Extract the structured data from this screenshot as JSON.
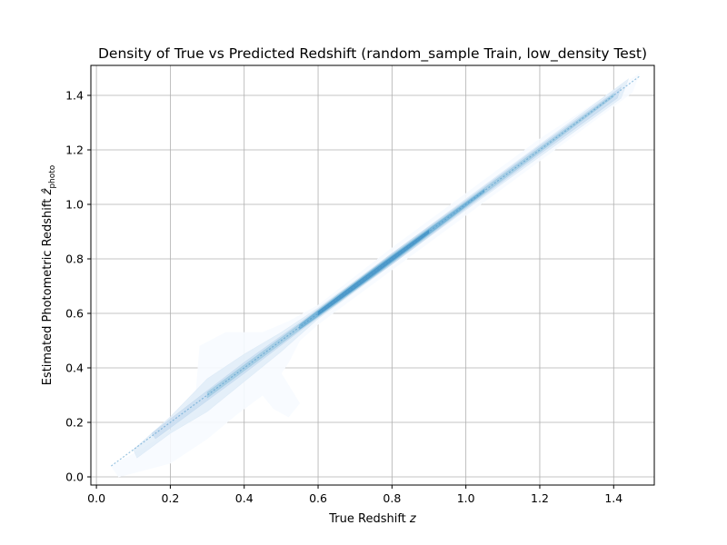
{
  "chart_data": {
    "type": "density",
    "title": "Density of True vs Predicted Redshift (random_sample Train, low_density Test)",
    "xlabel": {
      "main": "True Redshift ",
      "var": "z"
    },
    "ylabel": {
      "main": "Estimated Photometric Redshift ",
      "var": "ẑ",
      "sub": "photo"
    },
    "xlim": [
      -0.015,
      1.51
    ],
    "ylim": [
      -0.03,
      1.51
    ],
    "xticks": [
      0.0,
      0.2,
      0.4,
      0.6,
      0.8,
      1.0,
      1.2,
      1.4
    ],
    "xtick_labels": [
      "0.0",
      "0.2",
      "0.4",
      "0.6",
      "0.8",
      "1.0",
      "1.2",
      "1.4"
    ],
    "yticks": [
      0.0,
      0.2,
      0.4,
      0.6,
      0.8,
      1.0,
      1.2,
      1.4
    ],
    "ytick_labels": [
      "0.0",
      "0.2",
      "0.4",
      "0.6",
      "0.8",
      "1.0",
      "1.2",
      "1.4"
    ],
    "grid": true,
    "colormap": [
      "#f7fbff",
      "#deebf7",
      "#c6dbef",
      "#9ecae1",
      "#6baed6",
      "#4292c6",
      "#2171b5"
    ],
    "density_regions": [
      {
        "level": 0,
        "polygon": [
          [
            0.04,
            0.04
          ],
          [
            0.12,
            0.1
          ],
          [
            0.2,
            0.17
          ],
          [
            0.27,
            0.32
          ],
          [
            0.28,
            0.48
          ],
          [
            0.35,
            0.53
          ],
          [
            0.45,
            0.53
          ],
          [
            0.52,
            0.57
          ],
          [
            0.6,
            0.63
          ],
          [
            0.8,
            0.84
          ],
          [
            1.0,
            1.04
          ],
          [
            1.2,
            1.24
          ],
          [
            1.47,
            1.48
          ],
          [
            1.45,
            1.41
          ],
          [
            1.2,
            1.16
          ],
          [
            1.0,
            0.96
          ],
          [
            0.8,
            0.76
          ],
          [
            0.6,
            0.56
          ],
          [
            0.55,
            0.5
          ],
          [
            0.52,
            0.42
          ],
          [
            0.5,
            0.38
          ],
          [
            0.55,
            0.27
          ],
          [
            0.52,
            0.22
          ],
          [
            0.48,
            0.25
          ],
          [
            0.45,
            0.3
          ],
          [
            0.38,
            0.23
          ],
          [
            0.3,
            0.14
          ],
          [
            0.2,
            0.05
          ],
          [
            0.06,
            0.0
          ]
        ]
      },
      {
        "level": 1,
        "polygon": [
          [
            0.1,
            0.1
          ],
          [
            0.2,
            0.22
          ],
          [
            0.3,
            0.36
          ],
          [
            0.4,
            0.45
          ],
          [
            0.5,
            0.53
          ],
          [
            0.6,
            0.62
          ],
          [
            0.8,
            0.82
          ],
          [
            1.0,
            1.02
          ],
          [
            1.44,
            1.46
          ],
          [
            1.42,
            1.39
          ],
          [
            1.0,
            0.98
          ],
          [
            0.8,
            0.78
          ],
          [
            0.6,
            0.58
          ],
          [
            0.5,
            0.46
          ],
          [
            0.4,
            0.35
          ],
          [
            0.3,
            0.24
          ],
          [
            0.2,
            0.16
          ],
          [
            0.11,
            0.07
          ]
        ]
      },
      {
        "level": 2,
        "polygon": [
          [
            0.15,
            0.16
          ],
          [
            0.4,
            0.42
          ],
          [
            0.55,
            0.565
          ],
          [
            0.7,
            0.715
          ],
          [
            0.8,
            0.82
          ],
          [
            1.0,
            1.015
          ],
          [
            1.2,
            1.215
          ],
          [
            1.42,
            1.43
          ],
          [
            1.41,
            1.39
          ],
          [
            1.2,
            1.185
          ],
          [
            1.0,
            0.985
          ],
          [
            0.8,
            0.78
          ],
          [
            0.7,
            0.685
          ],
          [
            0.55,
            0.535
          ],
          [
            0.4,
            0.38
          ],
          [
            0.16,
            0.14
          ]
        ]
      },
      {
        "level": 3,
        "polygon": [
          [
            0.3,
            0.31
          ],
          [
            0.55,
            0.56
          ],
          [
            0.65,
            0.665
          ],
          [
            0.8,
            0.815
          ],
          [
            1.0,
            1.01
          ],
          [
            1.4,
            1.405
          ],
          [
            1.4,
            1.395
          ],
          [
            1.0,
            0.99
          ],
          [
            0.8,
            0.785
          ],
          [
            0.65,
            0.635
          ],
          [
            0.55,
            0.54
          ],
          [
            0.3,
            0.29
          ]
        ]
      },
      {
        "level": 4,
        "polygon": [
          [
            0.55,
            0.558
          ],
          [
            0.65,
            0.66
          ],
          [
            0.75,
            0.762
          ],
          [
            0.85,
            0.86
          ],
          [
            1.0,
            1.006
          ],
          [
            1.05,
            1.055
          ],
          [
            1.05,
            1.045
          ],
          [
            1.0,
            0.994
          ],
          [
            0.85,
            0.84
          ],
          [
            0.75,
            0.738
          ],
          [
            0.65,
            0.64
          ],
          [
            0.55,
            0.542
          ]
        ]
      },
      {
        "level": 5,
        "polygon": [
          [
            0.6,
            0.606
          ],
          [
            0.7,
            0.708
          ],
          [
            0.8,
            0.807
          ],
          [
            0.9,
            0.905
          ],
          [
            0.9,
            0.895
          ],
          [
            0.8,
            0.793
          ],
          [
            0.7,
            0.692
          ],
          [
            0.6,
            0.594
          ]
        ]
      }
    ],
    "density_line": {
      "x": [
        0.04,
        1.47
      ],
      "y": [
        0.04,
        1.47
      ]
    }
  }
}
